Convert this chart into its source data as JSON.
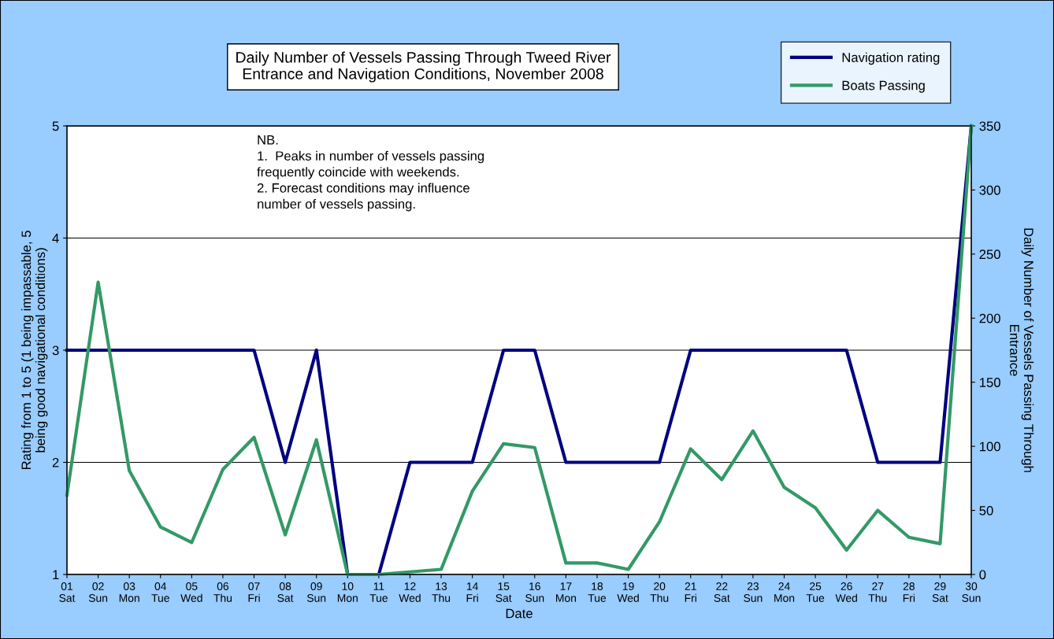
{
  "chart_data": {
    "type": "line",
    "title": "Daily Number of Vessels Passing Through Tweed River\nEntrance and Navigation Conditions, November 2008",
    "xlabel": "Date",
    "ylabel": "Rating from 1 to 5 (1 being impassable, 5\nbeing good navigational conditions)",
    "y2label": "Daily Number of Vessels Passing Through\nEntrance",
    "categories": [
      "01\nSat",
      "02\nSun",
      "03\nMon",
      "04\nTue",
      "05\nWed",
      "06\nThu",
      "07\nFri",
      "08\nSat",
      "09\nSun",
      "10\nMon",
      "11\nTue",
      "12\nWed",
      "13\nThu",
      "14\nFri",
      "15\nSat",
      "16\nSun",
      "17\nMon",
      "18\nTue",
      "19\nWed",
      "20\nThu",
      "21\nFri",
      "22\nSat",
      "23\nSun",
      "24\nMon",
      "25\nTue",
      "26\nWed",
      "27\nThu",
      "28\nFri",
      "29\nSat",
      "30\nSun"
    ],
    "series": [
      {
        "name": "Navigation rating",
        "color": "#000080",
        "values": [
          3,
          3,
          3,
          3,
          3,
          3,
          3,
          2,
          3,
          1,
          1,
          2,
          2,
          2,
          3,
          3,
          2,
          2,
          2,
          2,
          3,
          3,
          3,
          3,
          3,
          3,
          2,
          2,
          2,
          5
        ]
      },
      {
        "name": "Boats Passing",
        "color": "#339966",
        "axis": "y2",
        "values": [
          62,
          228,
          81,
          37,
          25,
          82,
          107,
          31,
          105,
          0,
          0,
          2,
          4,
          65,
          102,
          99,
          9,
          9,
          4,
          41,
          98,
          74,
          112,
          68,
          52,
          19,
          50,
          29,
          24,
          350
        ]
      }
    ],
    "ylim": [
      1,
      5
    ],
    "yticks": [
      1,
      2,
      3,
      4,
      5
    ],
    "y2lim": [
      0,
      350
    ],
    "y2ticks": [
      0,
      50,
      100,
      150,
      200,
      250,
      300,
      350
    ],
    "grid": "y",
    "legend": "top right",
    "marker": "none",
    "line_style": "solid",
    "annotations": [
      "NB.\n1.  Peaks in number of vessels passing\nfrequently coincide with weekends.\n2. Forecast conditions may influence\nnumber of vessels passing."
    ]
  }
}
